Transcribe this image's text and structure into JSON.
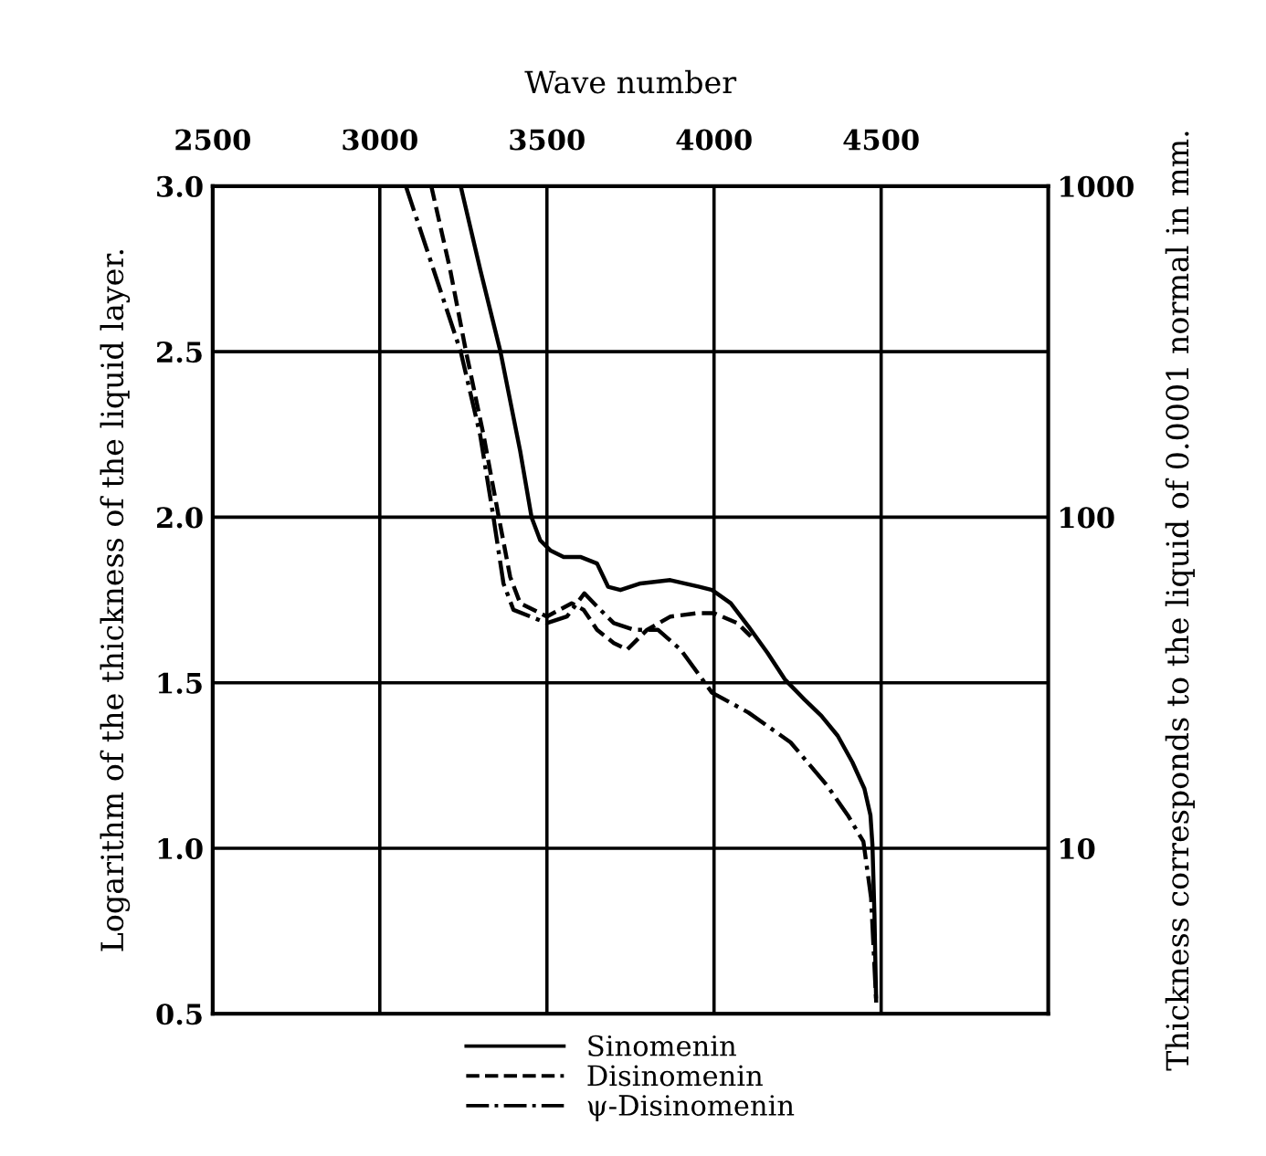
{
  "chart_data": {
    "type": "line",
    "xlabel": "Wave number",
    "ylabel": "Logarithm of the thickness of the liquid layer.",
    "y2label": "Thickness corresponds to the liquid of 0.0001 normal in mm.",
    "xlim": [
      2500,
      5000
    ],
    "xticks": [
      2500,
      3000,
      3500,
      4000,
      4500
    ],
    "ylim": [
      0.5,
      3.0
    ],
    "yticks": [
      0.5,
      {
        "value": 1,
        "label": "1.0"
      },
      1.5,
      {
        "value": 2,
        "label": "2.0"
      },
      2.5,
      {
        "value": 3,
        "label": "3.0"
      }
    ],
    "y2lim": [
      3.1623,
      1000
    ],
    "y2ticks": [
      10,
      100,
      1000
    ],
    "log": "y2",
    "grid": true,
    "legend": "bottom",
    "marker": "none",
    "series": [
      {
        "name": "Sinomenin",
        "color": "#000000",
        "line_style": "solid",
        "x": [
          3242,
          3300,
          3361,
          3420,
          3454,
          3480,
          3510,
          3550,
          3600,
          3650,
          3683,
          3720,
          3780,
          3869,
          3956,
          3994,
          4050,
          4103,
          4160,
          4212,
          4270,
          4321,
          4370,
          4414,
          4450,
          4468,
          4474,
          4480,
          4485
        ],
        "values": [
          3.0,
          2.75,
          2.5,
          2.2,
          2.0,
          1.93,
          1.9,
          1.88,
          1.88,
          1.86,
          1.79,
          1.78,
          1.8,
          1.81,
          1.79,
          1.78,
          1.74,
          1.67,
          1.59,
          1.51,
          1.45,
          1.4,
          1.34,
          1.26,
          1.18,
          1.1,
          1.01,
          0.8,
          0.54
        ]
      },
      {
        "name": "Disinomenin",
        "color": "#000000",
        "line_style": "dashed",
        "x": [
          3154,
          3210,
          3258,
          3310,
          3356,
          3390,
          3420,
          3500,
          3574,
          3610,
          3650,
          3700,
          3740,
          3800,
          3870,
          3950,
          4000,
          4070,
          4110
        ],
        "values": [
          3.0,
          2.75,
          2.5,
          2.25,
          2.0,
          1.82,
          1.74,
          1.7,
          1.74,
          1.72,
          1.66,
          1.62,
          1.6,
          1.66,
          1.7,
          1.71,
          1.71,
          1.68,
          1.64
        ]
      },
      {
        "name": "ψ-Disinomenin",
        "color": "#000000",
        "line_style": "dashdot",
        "x": [
          3078,
          3160,
          3242,
          3300,
          3340,
          3370,
          3400,
          3500,
          3560,
          3612,
          3660,
          3700,
          3760,
          3832,
          3900,
          3994,
          4103,
          4229,
          4338,
          4400,
          4447,
          4470,
          4485
        ],
        "values": [
          3.0,
          2.75,
          2.5,
          2.25,
          2.0,
          1.8,
          1.72,
          1.68,
          1.7,
          1.77,
          1.72,
          1.68,
          1.66,
          1.66,
          1.6,
          1.47,
          1.41,
          1.32,
          1.19,
          1.1,
          1.02,
          0.85,
          0.54
        ]
      }
    ]
  }
}
